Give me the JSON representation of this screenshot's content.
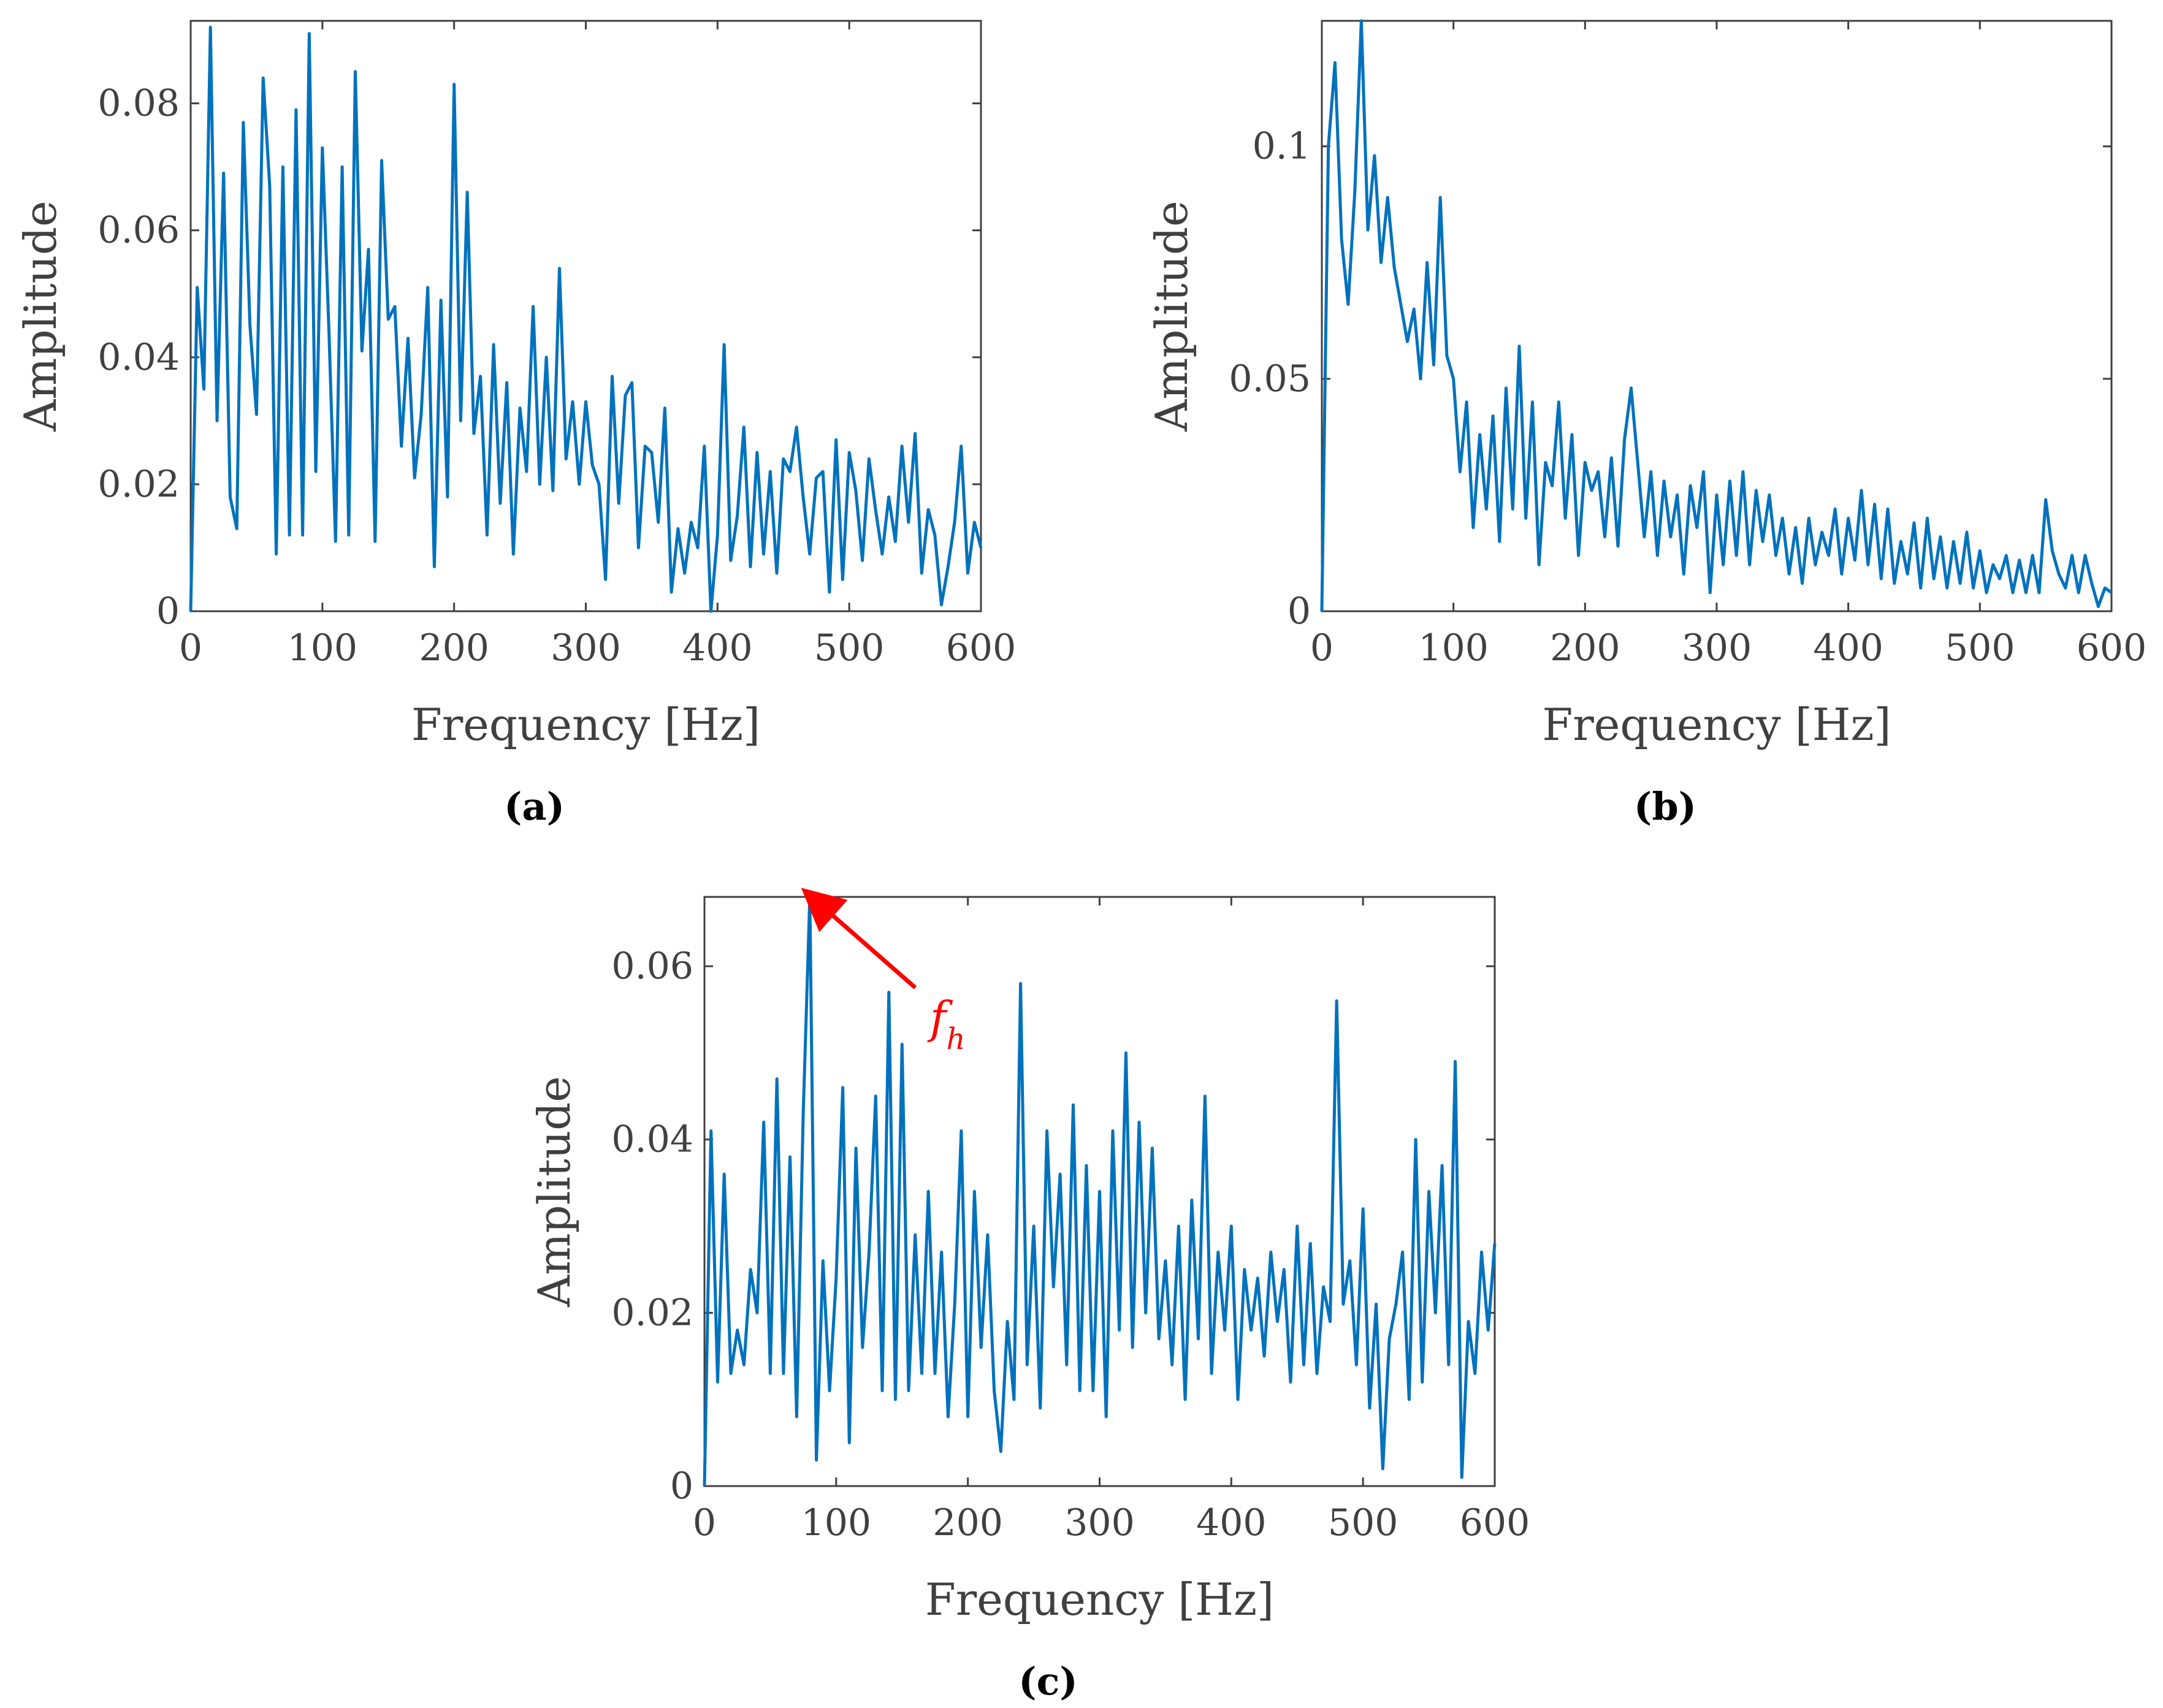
{
  "figure": {
    "colors": {
      "series": "#0072BD",
      "annotation": "#FF0000",
      "axis": "#404040",
      "caption": "#000000"
    }
  },
  "chart_data": [
    {
      "type": "line",
      "panel_label": "(a)",
      "xlabel": "Frequency [Hz]",
      "ylabel": "Amplitude",
      "xlim": [
        0,
        600
      ],
      "ylim": [
        0,
        0.093
      ],
      "xticks": [
        0,
        100,
        200,
        300,
        400,
        500,
        600
      ],
      "xtick_labels": [
        "0",
        "100",
        "200",
        "300",
        "400",
        "500",
        "600"
      ],
      "yticks": [
        0,
        0.02,
        0.04,
        0.06,
        0.08
      ],
      "ytick_labels": [
        "0",
        "0.02",
        "0.04",
        "0.06",
        "0.08"
      ],
      "x": [
        0,
        5,
        10,
        15,
        20,
        25,
        30,
        35,
        40,
        45,
        50,
        55,
        60,
        65,
        70,
        75,
        80,
        85,
        90,
        95,
        100,
        105,
        110,
        115,
        120,
        125,
        130,
        135,
        140,
        145,
        150,
        155,
        160,
        165,
        170,
        175,
        180,
        185,
        190,
        195,
        200,
        205,
        210,
        215,
        220,
        225,
        230,
        235,
        240,
        245,
        250,
        255,
        260,
        265,
        270,
        275,
        280,
        285,
        290,
        295,
        300,
        305,
        310,
        315,
        320,
        325,
        330,
        335,
        340,
        345,
        350,
        355,
        360,
        365,
        370,
        375,
        380,
        385,
        390,
        395,
        400,
        405,
        410,
        415,
        420,
        425,
        430,
        435,
        440,
        445,
        450,
        455,
        460,
        465,
        470,
        475,
        480,
        485,
        490,
        495,
        500,
        505,
        510,
        515,
        520,
        525,
        530,
        535,
        540,
        545,
        550,
        555,
        560,
        565,
        570,
        575,
        580,
        585,
        590,
        595,
        600
      ],
      "values": [
        0.0,
        0.051,
        0.035,
        0.092,
        0.03,
        0.069,
        0.018,
        0.013,
        0.077,
        0.045,
        0.031,
        0.084,
        0.067,
        0.009,
        0.07,
        0.012,
        0.079,
        0.012,
        0.091,
        0.022,
        0.073,
        0.044,
        0.011,
        0.07,
        0.012,
        0.085,
        0.041,
        0.057,
        0.011,
        0.071,
        0.046,
        0.048,
        0.026,
        0.043,
        0.021,
        0.031,
        0.051,
        0.007,
        0.049,
        0.018,
        0.083,
        0.03,
        0.066,
        0.028,
        0.037,
        0.012,
        0.042,
        0.017,
        0.036,
        0.009,
        0.032,
        0.022,
        0.048,
        0.02,
        0.04,
        0.019,
        0.054,
        0.024,
        0.033,
        0.02,
        0.033,
        0.023,
        0.02,
        0.005,
        0.037,
        0.017,
        0.034,
        0.036,
        0.01,
        0.026,
        0.025,
        0.014,
        0.032,
        0.003,
        0.013,
        0.006,
        0.014,
        0.01,
        0.026,
        0.0,
        0.012,
        0.042,
        0.008,
        0.015,
        0.029,
        0.007,
        0.025,
        0.009,
        0.022,
        0.006,
        0.024,
        0.022,
        0.029,
        0.018,
        0.009,
        0.021,
        0.022,
        0.003,
        0.027,
        0.005,
        0.025,
        0.019,
        0.008,
        0.024,
        0.016,
        0.009,
        0.018,
        0.011,
        0.026,
        0.014,
        0.028,
        0.006,
        0.016,
        0.012,
        0.001,
        0.007,
        0.014,
        0.026,
        0.006,
        0.014,
        0.01
      ],
      "grid": false,
      "box": true
    },
    {
      "type": "line",
      "panel_label": "(b)",
      "xlabel": "Frequency [Hz]",
      "ylabel": "Amplitude",
      "xlim": [
        0,
        600
      ],
      "ylim": [
        0,
        0.127
      ],
      "xticks": [
        0,
        100,
        200,
        300,
        400,
        500,
        600
      ],
      "xtick_labels": [
        "0",
        "100",
        "200",
        "300",
        "400",
        "500",
        "600"
      ],
      "yticks": [
        0,
        0.05,
        0.1
      ],
      "ytick_labels": [
        "0",
        "0.05",
        "0.1"
      ],
      "x": [
        0,
        5,
        10,
        15,
        20,
        25,
        30,
        35,
        40,
        45,
        50,
        55,
        60,
        65,
        70,
        75,
        80,
        85,
        90,
        95,
        100,
        105,
        110,
        115,
        120,
        125,
        130,
        135,
        140,
        145,
        150,
        155,
        160,
        165,
        170,
        175,
        180,
        185,
        190,
        195,
        200,
        205,
        210,
        215,
        220,
        225,
        230,
        235,
        240,
        245,
        250,
        255,
        260,
        265,
        270,
        275,
        280,
        285,
        290,
        295,
        300,
        305,
        310,
        315,
        320,
        325,
        330,
        335,
        340,
        345,
        350,
        355,
        360,
        365,
        370,
        375,
        380,
        385,
        390,
        395,
        400,
        405,
        410,
        415,
        420,
        425,
        430,
        435,
        440,
        445,
        450,
        455,
        460,
        465,
        470,
        475,
        480,
        485,
        490,
        495,
        500,
        505,
        510,
        515,
        520,
        525,
        530,
        535,
        540,
        545,
        550,
        555,
        560,
        565,
        570,
        575,
        580,
        585,
        590,
        595,
        600
      ],
      "values": [
        0.0,
        0.1,
        0.118,
        0.08,
        0.066,
        0.09,
        0.127,
        0.082,
        0.098,
        0.075,
        0.089,
        0.074,
        0.066,
        0.058,
        0.065,
        0.05,
        0.075,
        0.053,
        0.089,
        0.055,
        0.05,
        0.03,
        0.045,
        0.018,
        0.038,
        0.022,
        0.042,
        0.015,
        0.048,
        0.022,
        0.057,
        0.02,
        0.045,
        0.01,
        0.032,
        0.027,
        0.045,
        0.02,
        0.038,
        0.012,
        0.032,
        0.026,
        0.03,
        0.016,
        0.033,
        0.014,
        0.037,
        0.048,
        0.032,
        0.016,
        0.03,
        0.012,
        0.028,
        0.016,
        0.025,
        0.008,
        0.027,
        0.018,
        0.03,
        0.004,
        0.025,
        0.01,
        0.028,
        0.012,
        0.03,
        0.01,
        0.026,
        0.015,
        0.025,
        0.012,
        0.02,
        0.008,
        0.018,
        0.006,
        0.02,
        0.01,
        0.017,
        0.012,
        0.022,
        0.008,
        0.02,
        0.011,
        0.026,
        0.01,
        0.023,
        0.007,
        0.022,
        0.006,
        0.015,
        0.008,
        0.019,
        0.005,
        0.02,
        0.007,
        0.016,
        0.005,
        0.015,
        0.006,
        0.017,
        0.005,
        0.013,
        0.004,
        0.01,
        0.007,
        0.012,
        0.004,
        0.011,
        0.004,
        0.012,
        0.004,
        0.024,
        0.013,
        0.008,
        0.005,
        0.012,
        0.004,
        0.012,
        0.006,
        0.001,
        0.005,
        0.004
      ],
      "grid": false,
      "box": true
    },
    {
      "type": "line",
      "panel_label": "(c)",
      "xlabel": "Frequency [Hz]",
      "ylabel": "Amplitude",
      "xlim": [
        0,
        600
      ],
      "ylim": [
        0,
        0.068
      ],
      "xticks": [
        0,
        100,
        200,
        300,
        400,
        500,
        600
      ],
      "xtick_labels": [
        "0",
        "100",
        "200",
        "300",
        "400",
        "500",
        "600"
      ],
      "yticks": [
        0,
        0.02,
        0.04,
        0.06
      ],
      "ytick_labels": [
        "0",
        "0.02",
        "0.04",
        "0.06"
      ],
      "x": [
        0,
        5,
        10,
        15,
        20,
        25,
        30,
        35,
        40,
        45,
        50,
        55,
        60,
        65,
        70,
        75,
        80,
        85,
        90,
        95,
        100,
        105,
        110,
        115,
        120,
        125,
        130,
        135,
        140,
        145,
        150,
        155,
        160,
        165,
        170,
        175,
        180,
        185,
        190,
        195,
        200,
        205,
        210,
        215,
        220,
        225,
        230,
        235,
        240,
        245,
        250,
        255,
        260,
        265,
        270,
        275,
        280,
        285,
        290,
        295,
        300,
        305,
        310,
        315,
        320,
        325,
        330,
        335,
        340,
        345,
        350,
        355,
        360,
        365,
        370,
        375,
        380,
        385,
        390,
        395,
        400,
        405,
        410,
        415,
        420,
        425,
        430,
        435,
        440,
        445,
        450,
        455,
        460,
        465,
        470,
        475,
        480,
        485,
        490,
        495,
        500,
        505,
        510,
        515,
        520,
        525,
        530,
        535,
        540,
        545,
        550,
        555,
        560,
        565,
        570,
        575,
        580,
        585,
        590,
        595,
        600
      ],
      "values": [
        0.0,
        0.041,
        0.012,
        0.036,
        0.013,
        0.018,
        0.014,
        0.025,
        0.02,
        0.042,
        0.013,
        0.047,
        0.013,
        0.038,
        0.008,
        0.043,
        0.068,
        0.003,
        0.026,
        0.011,
        0.024,
        0.046,
        0.005,
        0.039,
        0.016,
        0.027,
        0.045,
        0.011,
        0.057,
        0.01,
        0.051,
        0.011,
        0.029,
        0.013,
        0.034,
        0.013,
        0.027,
        0.008,
        0.021,
        0.041,
        0.008,
        0.034,
        0.016,
        0.029,
        0.011,
        0.004,
        0.019,
        0.01,
        0.058,
        0.014,
        0.03,
        0.009,
        0.041,
        0.023,
        0.036,
        0.014,
        0.044,
        0.011,
        0.037,
        0.011,
        0.034,
        0.008,
        0.041,
        0.018,
        0.05,
        0.016,
        0.042,
        0.02,
        0.039,
        0.017,
        0.026,
        0.014,
        0.03,
        0.01,
        0.033,
        0.017,
        0.045,
        0.013,
        0.027,
        0.018,
        0.03,
        0.01,
        0.025,
        0.018,
        0.024,
        0.015,
        0.027,
        0.019,
        0.025,
        0.012,
        0.03,
        0.014,
        0.028,
        0.013,
        0.023,
        0.019,
        0.056,
        0.021,
        0.026,
        0.014,
        0.032,
        0.009,
        0.021,
        0.002,
        0.017,
        0.021,
        0.027,
        0.01,
        0.04,
        0.012,
        0.034,
        0.02,
        0.037,
        0.014,
        0.049,
        0.001,
        0.019,
        0.013,
        0.027,
        0.018,
        0.028
      ],
      "grid": false,
      "box": true,
      "annotation": {
        "symbol": "f",
        "subscript": "h",
        "target_x": 80,
        "target_y": 0.068
      }
    }
  ]
}
